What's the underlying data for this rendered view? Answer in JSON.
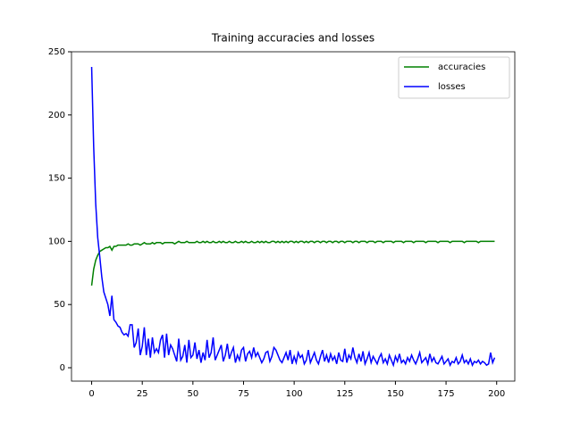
{
  "chart_data": {
    "type": "line",
    "title": "Training accuracies and losses",
    "x": [
      0,
      1,
      2,
      3,
      4,
      5,
      6,
      7,
      8,
      9,
      10,
      11,
      12,
      13,
      14,
      15,
      16,
      17,
      18,
      19,
      20,
      21,
      22,
      23,
      24,
      25,
      26,
      27,
      28,
      29,
      30,
      31,
      32,
      33,
      34,
      35,
      36,
      37,
      38,
      39,
      40,
      41,
      42,
      43,
      44,
      45,
      46,
      47,
      48,
      49,
      50,
      51,
      52,
      53,
      54,
      55,
      56,
      57,
      58,
      59,
      60,
      61,
      62,
      63,
      64,
      65,
      66,
      67,
      68,
      69,
      70,
      71,
      72,
      73,
      74,
      75,
      76,
      77,
      78,
      79,
      80,
      81,
      82,
      83,
      84,
      85,
      86,
      87,
      88,
      89,
      90,
      91,
      92,
      93,
      94,
      95,
      96,
      97,
      98,
      99,
      100,
      101,
      102,
      103,
      104,
      105,
      106,
      107,
      108,
      109,
      110,
      111,
      112,
      113,
      114,
      115,
      116,
      117,
      118,
      119,
      120,
      121,
      122,
      123,
      124,
      125,
      126,
      127,
      128,
      129,
      130,
      131,
      132,
      133,
      134,
      135,
      136,
      137,
      138,
      139,
      140,
      141,
      142,
      143,
      144,
      145,
      146,
      147,
      148,
      149,
      150,
      151,
      152,
      153,
      154,
      155,
      156,
      157,
      158,
      159,
      160,
      161,
      162,
      163,
      164,
      165,
      166,
      167,
      168,
      169,
      170,
      171,
      172,
      173,
      174,
      175,
      176,
      177,
      178,
      179,
      180,
      181,
      182,
      183,
      184,
      185,
      186,
      187,
      188,
      189,
      190,
      191,
      192,
      193,
      194,
      195,
      196,
      197,
      198,
      199
    ],
    "series": [
      {
        "name": "accuracies",
        "color": "#008000",
        "values": [
          65,
          78,
          85,
          89,
          92,
          93,
          94,
          95,
          95,
          96,
          93,
          96,
          96,
          97,
          97,
          97,
          97,
          97,
          98,
          97,
          97,
          98,
          98,
          98,
          97,
          98,
          99,
          98,
          98,
          98,
          99,
          98,
          99,
          99,
          99,
          98,
          99,
          99,
          99,
          99,
          99,
          98,
          99,
          100,
          99,
          99,
          99,
          100,
          99,
          99,
          99,
          99,
          100,
          99,
          99,
          100,
          99,
          100,
          99,
          99,
          100,
          99,
          99,
          100,
          99,
          100,
          99,
          99,
          100,
          99,
          99,
          100,
          99,
          99,
          100,
          99,
          100,
          99,
          99,
          100,
          99,
          99,
          100,
          99,
          100,
          99,
          100,
          99,
          99,
          100,
          100,
          99,
          100,
          99,
          100,
          99,
          100,
          99,
          100,
          100,
          99,
          100,
          99,
          100,
          100,
          99,
          100,
          99,
          100,
          100,
          99,
          100,
          100,
          99,
          100,
          100,
          99,
          100,
          100,
          99,
          100,
          100,
          99,
          100,
          100,
          99,
          100,
          100,
          100,
          99,
          100,
          100,
          99,
          100,
          100,
          100,
          99,
          100,
          100,
          100,
          99,
          100,
          100,
          100,
          99,
          100,
          100,
          100,
          100,
          99,
          100,
          100,
          100,
          100,
          99,
          100,
          100,
          100,
          100,
          99,
          100,
          100,
          100,
          100,
          100,
          99,
          100,
          100,
          100,
          100,
          100,
          99,
          100,
          100,
          100,
          100,
          100,
          99,
          100,
          100,
          100,
          100,
          100,
          100,
          99,
          100,
          100,
          100,
          100,
          100,
          100,
          99,
          100,
          100,
          100,
          100,
          100,
          100,
          100,
          100
        ]
      },
      {
        "name": "losses",
        "color": "#0000ff",
        "values": [
          238,
          175,
          130,
          103,
          88,
          72,
          60,
          55,
          50,
          41,
          57,
          38,
          36,
          33,
          32,
          28,
          26,
          27,
          25,
          34,
          34,
          16,
          20,
          31,
          10,
          17,
          32,
          10,
          23,
          8,
          24,
          12,
          15,
          12,
          22,
          26,
          8,
          27,
          10,
          18,
          15,
          10,
          5,
          23,
          6,
          9,
          18,
          4,
          22,
          8,
          10,
          20,
          7,
          14,
          4,
          12,
          6,
          22,
          8,
          12,
          24,
          6,
          10,
          14,
          18,
          5,
          10,
          19,
          7,
          12,
          16,
          4,
          10,
          6,
          14,
          16,
          5,
          11,
          13,
          8,
          16,
          9,
          12,
          8,
          4,
          7,
          12,
          13,
          5,
          9,
          16,
          14,
          10,
          6,
          4,
          8,
          12,
          6,
          14,
          3,
          9,
          4,
          12,
          8,
          10,
          3,
          6,
          14,
          4,
          8,
          12,
          6,
          3,
          9,
          14,
          5,
          10,
          4,
          11,
          6,
          9,
          3,
          12,
          6,
          5,
          15,
          4,
          10,
          7,
          16,
          8,
          4,
          11,
          5,
          13,
          3,
          7,
          12,
          4,
          9,
          6,
          3,
          8,
          11,
          4,
          7,
          3,
          10,
          6,
          2,
          9,
          5,
          11,
          4,
          6,
          3,
          8,
          5,
          10,
          6,
          3,
          7,
          12,
          4,
          6,
          8,
          3,
          11,
          5,
          8,
          4,
          3,
          6,
          9,
          3,
          5,
          7,
          2,
          5,
          4,
          8,
          3,
          5,
          10,
          4,
          6,
          3,
          7,
          2,
          5,
          4,
          6,
          3,
          5,
          4,
          2,
          3,
          12,
          4,
          8
        ]
      }
    ],
    "xlim": [
      -9.95,
      208.95
    ],
    "ylim": [
      -10.6,
      250
    ],
    "xticks": [
      0,
      25,
      50,
      75,
      100,
      125,
      150,
      175,
      200
    ],
    "yticks": [
      0,
      50,
      100,
      150,
      200,
      250
    ],
    "legend": "upper right"
  }
}
